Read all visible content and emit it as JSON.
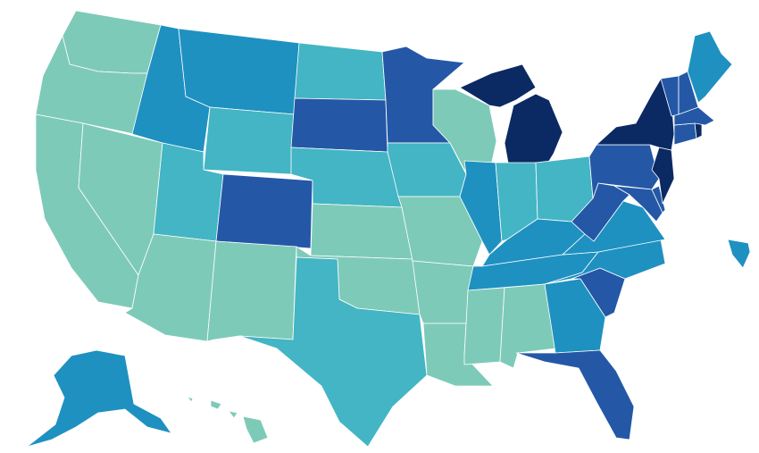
{
  "map": {
    "type": "choropleth",
    "region": "United States",
    "legend": null,
    "color_scale": {
      "level_1": "#7ecab8",
      "level_2": "#43b5c4",
      "level_3": "#1e91c1",
      "level_4": "#2458a6",
      "level_5": "#0b2a63"
    },
    "state_levels": {
      "WA": 1,
      "OR": 1,
      "CA": 1,
      "NV": 1,
      "AZ": 1,
      "NM": 1,
      "KS": 1,
      "OK": 1,
      "MO": 1,
      "AR": 1,
      "LA": 1,
      "MS": 1,
      "AL": 1,
      "WI": 1,
      "HI": 1,
      "UT": 2,
      "WY": 2,
      "ND": 2,
      "NE": 2,
      "IA": 2,
      "TX": 2,
      "IN": 2,
      "OH": 2,
      "ID": 3,
      "MT": 3,
      "IL": 3,
      "KY": 3,
      "TN": 3,
      "VA": 3,
      "NC": 3,
      "GA": 3,
      "ME": 3,
      "AK": 3,
      "PR": 3,
      "CO": 4,
      "SD": 4,
      "MN": 4,
      "PA": 4,
      "WV": 4,
      "SC": 4,
      "FL": 4,
      "MD": 4,
      "DE": 4,
      "VT": 4,
      "NH": 4,
      "MA": 4,
      "CT": 4,
      "MI": 5,
      "NY": 5,
      "NJ": 5,
      "RI": 5
    }
  }
}
